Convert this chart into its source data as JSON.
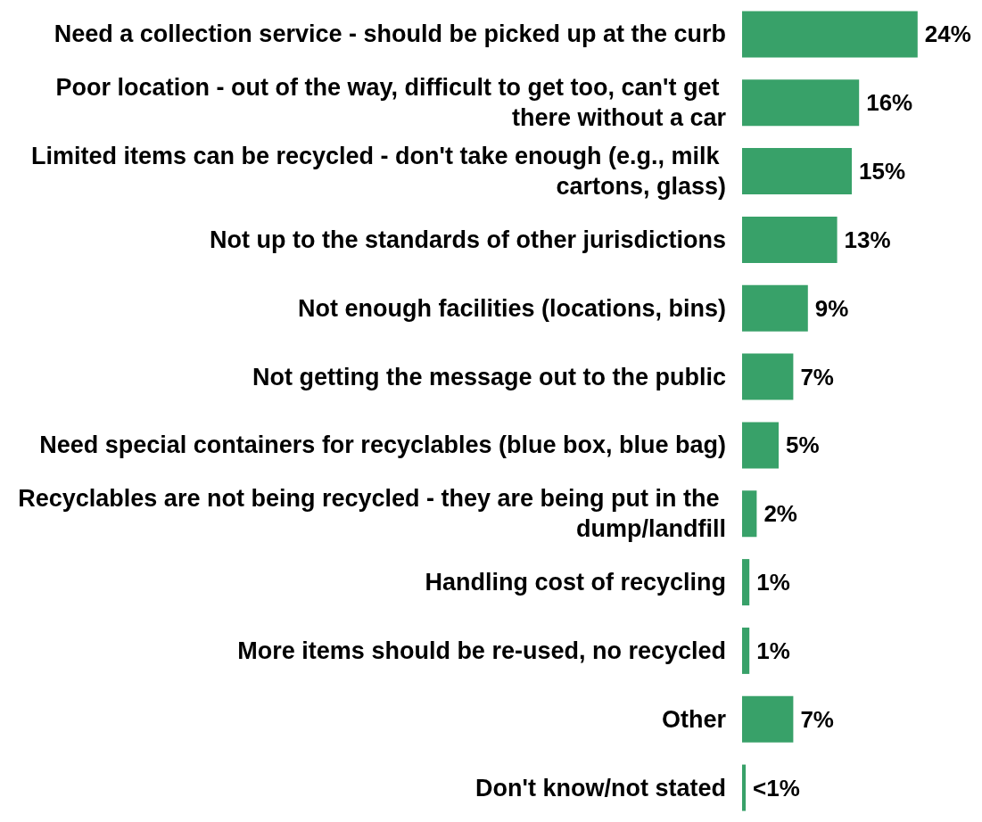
{
  "chart_data": {
    "type": "bar",
    "orientation": "horizontal",
    "categories": [
      "Need a collection service - should be picked up at the curb",
      "Poor location - out of the way, difficult to get too, can't get there without a car",
      "Limited items can be recycled - don't take enough (e.g., milk cartons, glass)",
      "Not up to the standards of other jurisdictions",
      "Not enough facilities (locations, bins)",
      "Not getting the message out to the public",
      "Need special containers for recyclables (blue box, blue bag)",
      "Recyclables are not being recycled - they are being put in the dump/landfill",
      "Handling cost of recycling",
      "More items should be re-used, no recycled",
      "Other",
      "Don't know/not stated"
    ],
    "values": [
      24,
      16,
      15,
      13,
      9,
      7,
      5,
      2,
      1,
      1,
      7,
      0.5
    ],
    "value_labels": [
      "24%",
      "16%",
      "15%",
      "13%",
      "9%",
      "7%",
      "5%",
      "2%",
      "1%",
      "1%",
      "7%",
      "<1%"
    ],
    "color": "#38a169"
  }
}
